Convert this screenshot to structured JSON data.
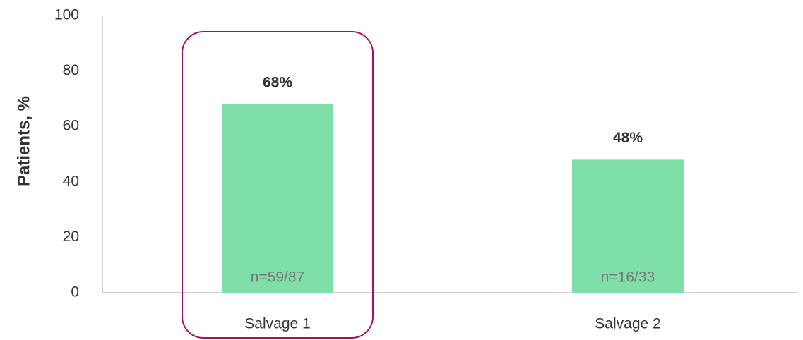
{
  "chart_data": {
    "type": "bar",
    "y_label": "Patients, %",
    "categories": [
      "Salvage 1",
      "Salvage 2"
    ],
    "values": [
      68,
      48
    ],
    "value_labels": [
      "68%",
      "48%"
    ],
    "sample_sizes": [
      "n=59/87",
      "n=16/33"
    ],
    "color": "#7ee0a8",
    "ylim": [
      0,
      100
    ],
    "yticks": [
      0,
      20,
      40,
      60,
      80,
      100
    ],
    "grid": false
  }
}
